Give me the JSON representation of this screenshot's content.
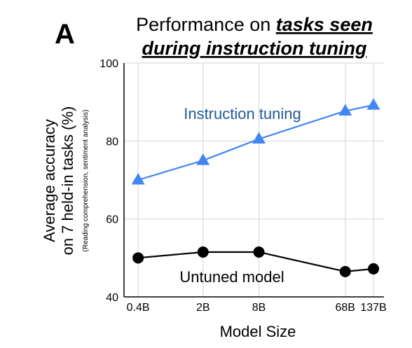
{
  "panel_label": "A",
  "colors": {
    "instruction": "#4286f4",
    "instruction_label": "#1f5a96",
    "untuned": "#000000",
    "grid": "#d9d9d9",
    "axis": "#000000"
  },
  "chart_data": {
    "type": "line",
    "title_prefix": "Performance on ",
    "title_emphasis_line1": "tasks seen",
    "title_emphasis_line2": "during instruction tuning",
    "xlabel": "Model Size",
    "ylabel_line1": "Average accuracy",
    "ylabel_line2": "on 7 held-in tasks (%)",
    "ylabel_note": "(Reading comprehension, sentiment analysis)",
    "categories": [
      "0.4B",
      "2B",
      "8B",
      "68B",
      "137B"
    ],
    "x_log": [
      -0.398,
      0.301,
      0.903,
      1.833,
      2.137
    ],
    "xlim": [
      -0.55,
      2.25
    ],
    "yticks": [
      40,
      60,
      80,
      100
    ],
    "ylim": [
      40,
      100
    ],
    "grid": true,
    "series": [
      {
        "name": "Instruction tuning",
        "marker": "triangle",
        "values": [
          70,
          75,
          80.5,
          87.7,
          89.2
        ]
      },
      {
        "name": "Untuned model",
        "marker": "circle",
        "values": [
          50,
          51.5,
          51.5,
          46.5,
          47.2
        ]
      }
    ]
  }
}
